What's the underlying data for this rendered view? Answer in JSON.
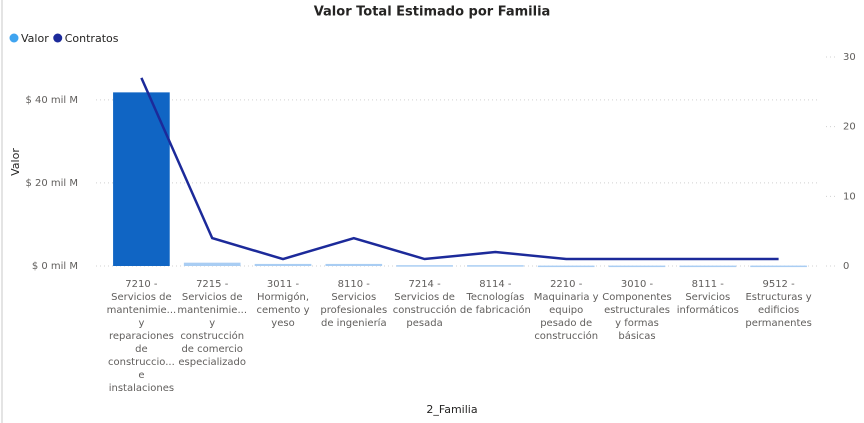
{
  "chart_data": {
    "type": "bar",
    "title": "Valor Total Estimado por Familia",
    "x_label": "2_Familia",
    "y_label": "Valor",
    "categories": [
      [
        "7210 -",
        "Servicios de",
        "mantenimie...",
        "y",
        "reparaciones",
        "de",
        "construccio...",
        "e",
        "instalaciones"
      ],
      [
        "7215 -",
        "Servicios de",
        "mantenimie...",
        "y",
        "construcción",
        "de comercio",
        "especializado"
      ],
      [
        "3011 -",
        "Hormigón,",
        "cemento y",
        "yeso"
      ],
      [
        "8110 -",
        "Servicios",
        "profesionales",
        "de ingeniería"
      ],
      [
        "7214 -",
        "Servicios de",
        "construcción",
        "pesada"
      ],
      [
        "8114 -",
        "Tecnologías",
        "de fabricación"
      ],
      [
        "2210 -",
        "Maquinaria y",
        "equipo",
        "pesado de",
        "construcción"
      ],
      [
        "3010 -",
        "Componentes",
        "estructurales",
        "y formas",
        "básicas"
      ],
      [
        "8111 -",
        "Servicios",
        "informáticos"
      ],
      [
        "9512 -",
        "Estructuras y",
        "edificios",
        "permanentes"
      ]
    ],
    "series": [
      {
        "name": "Valor",
        "color": "#3fa4f0",
        "bar_colors": [
          "#1065c4",
          "#a9cdf3",
          "#a9cdf3",
          "#a9cdf3",
          "#a9cdf3",
          "#a9cdf3",
          "#a9cdf3",
          "#a9cdf3",
          "#a9cdf3",
          "#a9cdf3"
        ],
        "values": [
          41.8,
          0.8,
          0.5,
          0.5,
          0.2,
          0.2,
          0.1,
          0.1,
          0.1,
          0.1
        ]
      },
      {
        "name": "Contratos",
        "color": "#1c2a9a",
        "axis": "y2",
        "type": "line",
        "values": [
          27,
          4,
          1,
          4,
          1,
          2,
          1,
          1,
          1,
          1
        ]
      }
    ],
    "ylim": [
      0,
      52
    ],
    "yticks": [
      {
        "value": 0,
        "label": "$ 0 mil M"
      },
      {
        "value": 20,
        "label": "$ 20 mil M"
      },
      {
        "value": 40,
        "label": "$ 40 mil M"
      }
    ],
    "y2lim": [
      0,
      31
    ],
    "y2ticks": [
      0,
      10,
      20,
      30
    ],
    "grid": true,
    "legend": "top-left"
  }
}
